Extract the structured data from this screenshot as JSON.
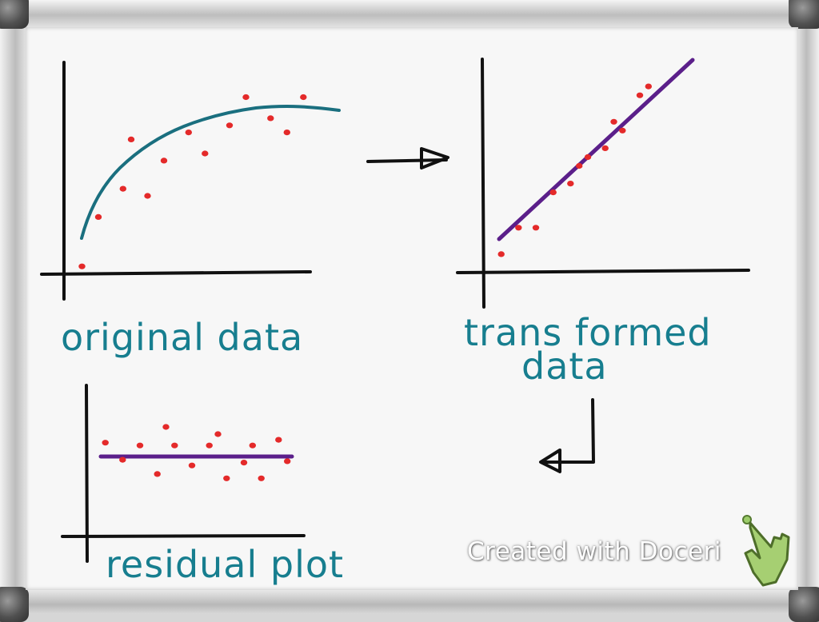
{
  "labels": {
    "original": "original data",
    "transformed_line1": "trans formed",
    "transformed_line2": "data",
    "residual": "residual plot"
  },
  "watermark": {
    "text": "Created with Doceri",
    "icon": "pointing-hand-icon"
  },
  "colors": {
    "ink": "#111111",
    "curve": "#1a6f7f",
    "points": "#e42a2a",
    "fit_line": "#5b1f8a",
    "label_text": "#177e8f"
  },
  "chart_data": [
    {
      "type": "scatter",
      "title": "original data",
      "x": [
        1,
        2,
        3.5,
        4,
        5,
        6,
        7.5,
        8.5,
        10,
        11,
        12.5,
        13.5,
        14.5
      ],
      "y": [
        0.5,
        4,
        6,
        9.5,
        5.5,
        8,
        10,
        8.5,
        10.5,
        12.5,
        11,
        10,
        12.5
      ],
      "fit": {
        "type": "curve",
        "shape": "concave increasing"
      },
      "xlim": [
        0,
        16
      ],
      "ylim": [
        0,
        14
      ]
    },
    {
      "type": "scatter",
      "title": "trans formed data",
      "x": [
        1,
        2,
        3,
        4,
        5,
        5.5,
        6,
        7,
        7.5,
        8,
        9,
        9.5
      ],
      "y": [
        1,
        2.5,
        2.5,
        4.5,
        5,
        6,
        6.5,
        7,
        8.5,
        8,
        10,
        10.5
      ],
      "fit": {
        "type": "line",
        "slope": 1.0,
        "intercept": 0.2
      },
      "xlim": [
        0,
        12
      ],
      "ylim": [
        0,
        12
      ]
    },
    {
      "type": "scatter",
      "title": "residual plot",
      "x": [
        1,
        2,
        3,
        4,
        4.5,
        5,
        6,
        7,
        7.5,
        8,
        9,
        9.5,
        10,
        11,
        11.5
      ],
      "y": [
        1,
        -0.2,
        0.8,
        -1.2,
        2.1,
        0.8,
        -0.6,
        0.8,
        1.6,
        -1.5,
        -0.4,
        0.8,
        -1.5,
        1.2,
        -0.3
      ],
      "fit": {
        "type": "line",
        "slope": 0,
        "intercept": 0
      },
      "xlim": [
        0,
        12
      ],
      "ylim": [
        -3,
        3
      ]
    }
  ]
}
